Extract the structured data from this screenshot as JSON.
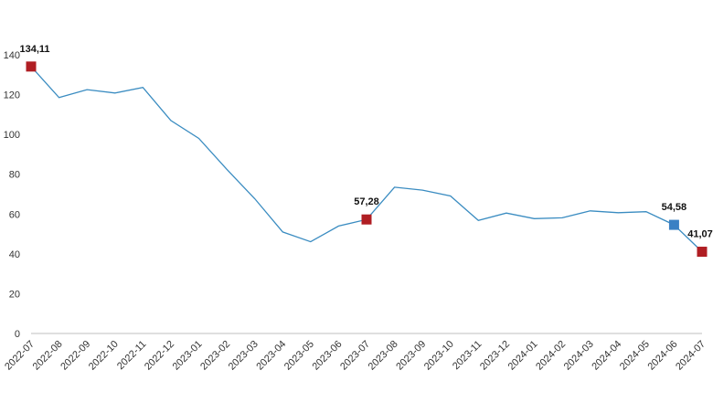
{
  "chart_data": {
    "type": "line",
    "title": "",
    "xlabel": "",
    "ylabel": "",
    "ylim": [
      0,
      140
    ],
    "yticks": [
      0,
      20,
      40,
      60,
      80,
      100,
      120,
      140
    ],
    "grid": false,
    "legend": "none",
    "line_color": "#3a8cc1",
    "x": [
      "2022-07",
      "2022-08",
      "2022-09",
      "2022-10",
      "2022-11",
      "2022-12",
      "2023-01",
      "2023-02",
      "2023-03",
      "2023-04",
      "2023-05",
      "2023-06",
      "2023-07",
      "2023-08",
      "2023-09",
      "2023-10",
      "2023-11",
      "2023-12",
      "2024-01",
      "2024-02",
      "2024-03",
      "2024-04",
      "2024-05",
      "2024-06",
      "2024-07"
    ],
    "series": [
      {
        "values": [
          134.11,
          118.5,
          122.5,
          120.8,
          123.6,
          107.0,
          98.0,
          82.5,
          67.7,
          51.0,
          46.1,
          54.0,
          57.28,
          73.5,
          72.0,
          69.1,
          56.8,
          60.5,
          57.7,
          58.1,
          61.6,
          60.7,
          61.2,
          54.58,
          41.07
        ]
      }
    ],
    "highlights": [
      {
        "index": 0,
        "label": "134,11",
        "color": "#b01e23"
      },
      {
        "index": 12,
        "label": "57,28",
        "color": "#b01e23"
      },
      {
        "index": 23,
        "label": "54,58",
        "color": "#3a80c4"
      },
      {
        "index": 24,
        "label": "41,07",
        "color": "#b01e23"
      }
    ]
  }
}
